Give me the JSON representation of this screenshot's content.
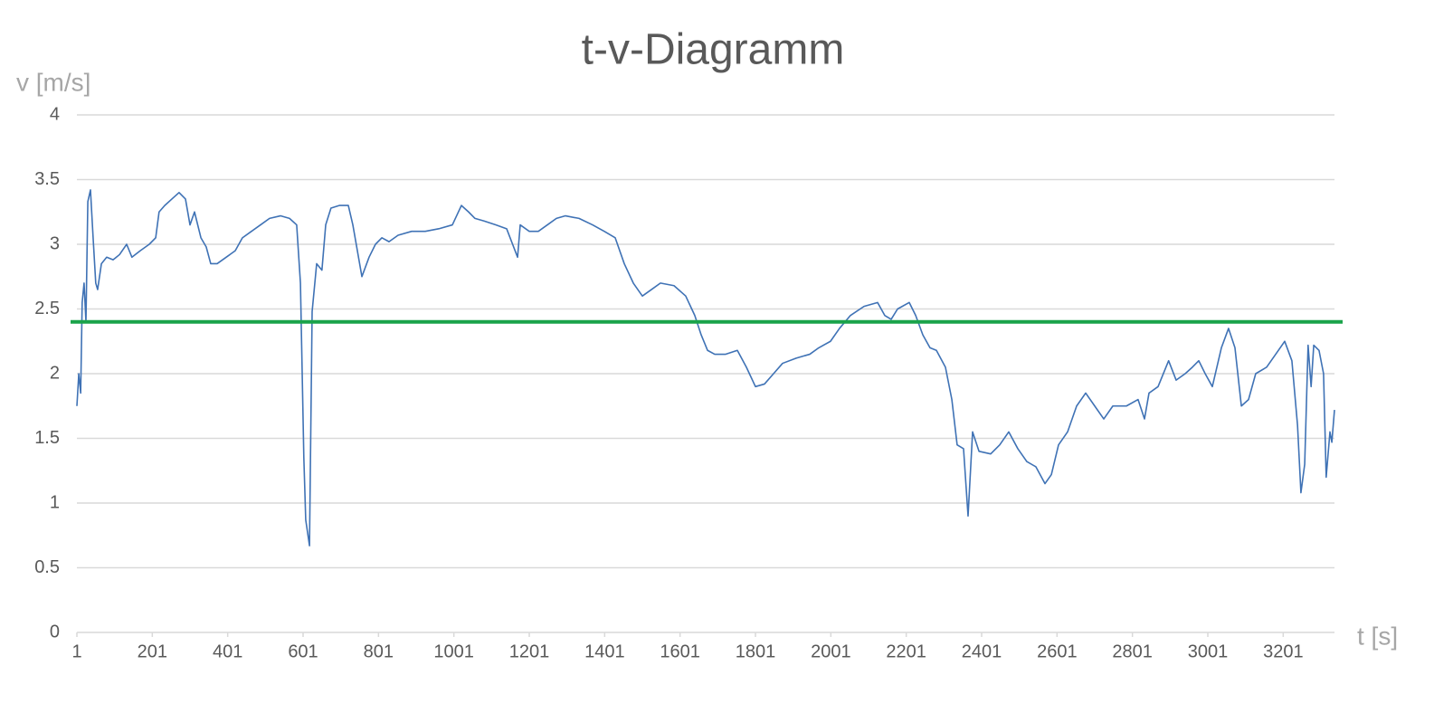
{
  "chart_data": {
    "type": "line",
    "title": "t-v-Diagramm",
    "y_label": "v [m/s]",
    "x_label": "t [s]",
    "grid": true,
    "xlim": [
      1,
      3337
    ],
    "xticks": [
      1,
      201,
      401,
      601,
      801,
      1001,
      1201,
      1401,
      1601,
      1801,
      2001,
      2201,
      2401,
      2601,
      2801,
      3001,
      3201
    ],
    "ylim": [
      0,
      4
    ],
    "yticks": [
      0,
      0.5,
      1,
      1.5,
      2,
      2.5,
      3,
      3.5,
      4
    ],
    "reference_line": {
      "value": 2.4,
      "color": "#1aa34a"
    },
    "x": [
      1,
      6,
      11,
      15,
      20,
      25,
      30,
      37,
      44,
      51,
      56,
      66,
      80,
      97,
      114,
      133,
      147,
      169,
      193,
      210,
      219,
      234,
      253,
      272,
      289,
      301,
      313,
      330,
      344,
      356,
      373,
      397,
      421,
      440,
      464,
      488,
      512,
      541,
      565,
      584,
      594,
      603,
      608,
      618,
      625,
      637,
      651,
      661,
      675,
      697,
      721,
      733,
      745,
      757,
      776,
      793,
      810,
      829,
      853,
      889,
      925,
      961,
      997,
      1021,
      1040,
      1057,
      1081,
      1112,
      1141,
      1170,
      1177,
      1201,
      1225,
      1249,
      1273,
      1297,
      1333,
      1369,
      1400,
      1429,
      1453,
      1477,
      1501,
      1525,
      1549,
      1585,
      1616,
      1640,
      1657,
      1674,
      1693,
      1722,
      1753,
      1777,
      1801,
      1825,
      1849,
      1873,
      1909,
      1945,
      1969,
      2000,
      2024,
      2053,
      2089,
      2125,
      2144,
      2161,
      2178,
      2209,
      2226,
      2245,
      2264,
      2281,
      2305,
      2322,
      2336,
      2353,
      2365,
      2377,
      2394,
      2425,
      2449,
      2473,
      2497,
      2521,
      2545,
      2569,
      2586,
      2605,
      2629,
      2653,
      2677,
      2701,
      2725,
      2749,
      2785,
      2816,
      2833,
      2845,
      2869,
      2897,
      2917,
      2941,
      2960,
      2977,
      2994,
      3013,
      3037,
      3056,
      3073,
      3090,
      3109,
      3128,
      3157,
      3181,
      3205,
      3224,
      3239,
      3248,
      3258,
      3267,
      3275,
      3282,
      3296,
      3308,
      3315,
      3325,
      3330,
      3337
    ],
    "series": [
      {
        "color": "#3f72b5",
        "values": [
          1.75,
          2.0,
          1.85,
          2.55,
          2.7,
          2.4,
          3.33,
          3.42,
          3.05,
          2.7,
          2.65,
          2.85,
          2.9,
          2.88,
          2.92,
          3.0,
          2.9,
          2.95,
          3.0,
          3.05,
          3.25,
          3.3,
          3.35,
          3.4,
          3.35,
          3.15,
          3.25,
          3.05,
          2.98,
          2.85,
          2.85,
          2.9,
          2.95,
          3.05,
          3.1,
          3.15,
          3.2,
          3.22,
          3.2,
          3.15,
          2.7,
          1.35,
          0.87,
          0.67,
          2.48,
          2.85,
          2.8,
          3.15,
          3.28,
          3.3,
          3.3,
          3.15,
          2.95,
          2.75,
          2.9,
          3.0,
          3.05,
          3.02,
          3.07,
          3.1,
          3.1,
          3.12,
          3.15,
          3.3,
          3.25,
          3.2,
          3.18,
          3.15,
          3.12,
          2.9,
          3.15,
          3.1,
          3.1,
          3.15,
          3.2,
          3.22,
          3.2,
          3.15,
          3.1,
          3.05,
          2.85,
          2.7,
          2.6,
          2.65,
          2.7,
          2.68,
          2.6,
          2.45,
          2.3,
          2.18,
          2.15,
          2.15,
          2.18,
          2.05,
          1.9,
          1.92,
          2.0,
          2.08,
          2.12,
          2.15,
          2.2,
          2.25,
          2.35,
          2.45,
          2.52,
          2.55,
          2.45,
          2.42,
          2.5,
          2.55,
          2.45,
          2.3,
          2.2,
          2.18,
          2.05,
          1.8,
          1.45,
          1.42,
          0.9,
          1.55,
          1.4,
          1.38,
          1.45,
          1.55,
          1.42,
          1.32,
          1.28,
          1.15,
          1.22,
          1.45,
          1.55,
          1.75,
          1.85,
          1.75,
          1.65,
          1.75,
          1.75,
          1.8,
          1.65,
          1.85,
          1.9,
          2.1,
          1.95,
          2.0,
          2.05,
          2.1,
          2.0,
          1.9,
          2.2,
          2.35,
          2.2,
          1.75,
          1.8,
          2.0,
          2.05,
          2.15,
          2.25,
          2.1,
          1.6,
          1.08,
          1.3,
          2.22,
          1.9,
          2.22,
          2.18,
          2.0,
          1.2,
          1.55,
          1.47,
          1.72
        ]
      }
    ]
  }
}
